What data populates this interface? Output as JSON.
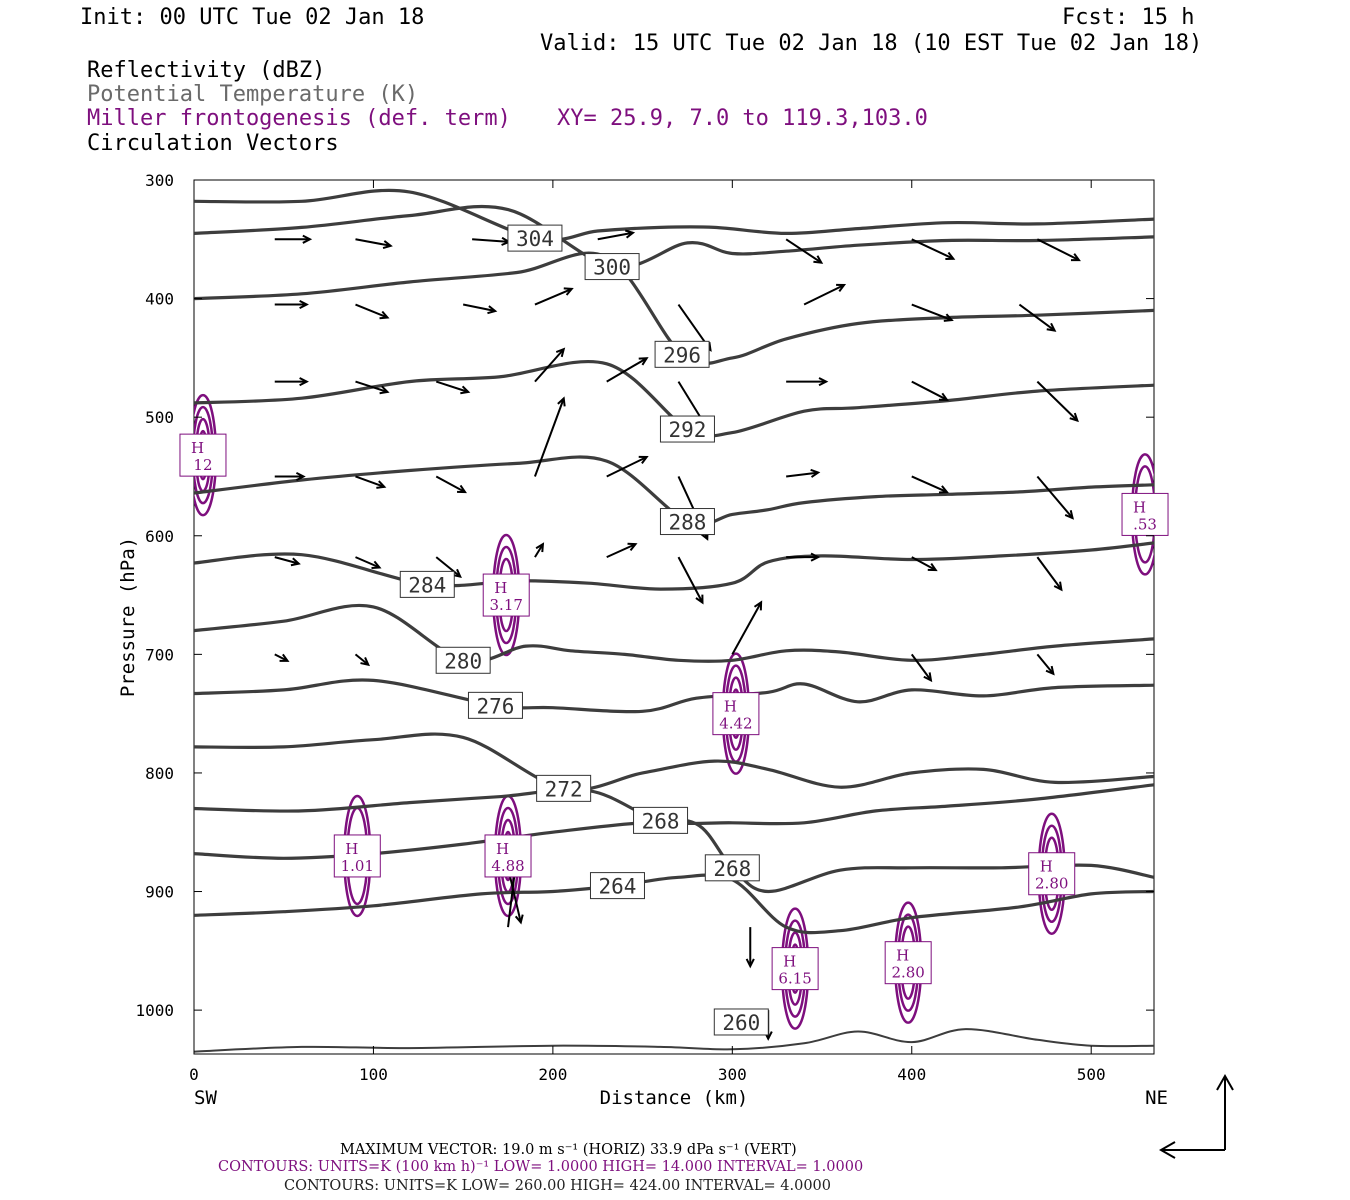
{
  "header": {
    "init": "Init: 00 UTC Tue 02 Jan 18",
    "fcst": "Fcst:   15 h",
    "valid": "Valid: 15 UTC Tue 02 Jan 18 (10 EST Tue 02 Jan 18)",
    "fields": {
      "reflectivity": "Reflectivity (dBZ)",
      "theta": "Potential Temperature (K)",
      "frontogenesis": "Miller frontogenesis (def. term)",
      "vectors": "Circulation Vectors"
    },
    "xy": "XY=  25.9,  7.0 to 119.3,103.0"
  },
  "colors": {
    "theta_contour": "#3d3d3d",
    "frontogenesis_contour": "#7e0f7e",
    "vector": "#000000",
    "text": "#000000"
  },
  "chart_data": {
    "type": "line",
    "title": "",
    "xlabel": "Distance (km)",
    "ylabel": "Pressure (hPa)",
    "xlim": [
      0,
      535
    ],
    "ylim": [
      1037,
      300
    ],
    "x_ticks": [
      "0",
      "100",
      "200",
      "300",
      "400",
      "500"
    ],
    "y_ticks": [
      "300",
      "400",
      "500",
      "600",
      "700",
      "800",
      "900",
      "1000"
    ],
    "endpoints": {
      "left": "SW",
      "right": "NE"
    },
    "theta_contours_K": [
      {
        "label": "260",
        "label_at": [
          305,
          1010
        ],
        "pts": [
          [
            0,
            1035
          ],
          [
            60,
            1031
          ],
          [
            120,
            1032
          ],
          [
            200,
            1030
          ],
          [
            260,
            1031
          ],
          [
            300,
            1033
          ],
          [
            340,
            1028
          ],
          [
            370,
            1018
          ],
          [
            400,
            1027
          ],
          [
            430,
            1016
          ],
          [
            470,
            1025
          ],
          [
            500,
            1030
          ],
          [
            535,
            1030
          ]
        ]
      },
      {
        "label": "264",
        "label_at": [
          236,
          895
        ],
        "pts": [
          [
            0,
            920
          ],
          [
            50,
            917
          ],
          [
            100,
            912
          ],
          [
            160,
            902
          ],
          [
            200,
            900
          ],
          [
            236,
            895
          ],
          [
            270,
            888
          ],
          [
            300,
            890
          ],
          [
            330,
            930
          ],
          [
            360,
            933
          ],
          [
            400,
            922
          ],
          [
            460,
            913
          ],
          [
            500,
            902
          ],
          [
            535,
            900
          ]
        ]
      },
      {
        "label": "268",
        "label_at": [
          300,
          880
        ],
        "pts": [
          [
            0,
            868
          ],
          [
            50,
            872
          ],
          [
            100,
            868
          ],
          [
            150,
            860
          ],
          [
            200,
            850
          ],
          [
            250,
            842
          ],
          [
            280,
            843
          ],
          [
            300,
            880
          ],
          [
            320,
            900
          ],
          [
            360,
            882
          ],
          [
            400,
            880
          ],
          [
            450,
            880
          ],
          [
            500,
            878
          ],
          [
            535,
            888
          ]
        ]
      },
      {
        "label": "268",
        "label_at": [
          260,
          840
        ],
        "pts": [
          [
            0,
            830
          ],
          [
            60,
            832
          ],
          [
            120,
            825
          ],
          [
            170,
            820
          ],
          [
            220,
            815
          ],
          [
            260,
            840
          ],
          [
            300,
            842
          ],
          [
            340,
            842
          ],
          [
            380,
            832
          ],
          [
            420,
            828
          ],
          [
            470,
            822
          ],
          [
            535,
            810
          ]
        ]
      },
      {
        "label": "272",
        "label_at": [
          206,
          813
        ],
        "pts": [
          [
            0,
            778
          ],
          [
            50,
            778
          ],
          [
            100,
            772
          ],
          [
            150,
            770
          ],
          [
            206,
            813
          ],
          [
            250,
            800
          ],
          [
            290,
            790
          ],
          [
            320,
            797
          ],
          [
            360,
            812
          ],
          [
            400,
            800
          ],
          [
            440,
            797
          ],
          [
            480,
            808
          ],
          [
            535,
            803
          ]
        ]
      },
      {
        "label": "276",
        "label_at": [
          168,
          743
        ],
        "pts": [
          [
            0,
            733
          ],
          [
            50,
            730
          ],
          [
            100,
            722
          ],
          [
            168,
            743
          ],
          [
            200,
            745
          ],
          [
            250,
            748
          ],
          [
            280,
            737
          ],
          [
            320,
            732
          ],
          [
            340,
            725
          ],
          [
            370,
            740
          ],
          [
            400,
            730
          ],
          [
            440,
            735
          ],
          [
            480,
            728
          ],
          [
            535,
            726
          ]
        ]
      },
      {
        "label": "280",
        "label_at": [
          150,
          705
        ],
        "pts": [
          [
            0,
            680
          ],
          [
            50,
            672
          ],
          [
            100,
            660
          ],
          [
            150,
            705
          ],
          [
            185,
            693
          ],
          [
            210,
            697
          ],
          [
            240,
            700
          ],
          [
            270,
            705
          ],
          [
            300,
            705
          ],
          [
            330,
            697
          ],
          [
            360,
            698
          ],
          [
            400,
            705
          ],
          [
            440,
            700
          ],
          [
            480,
            693
          ],
          [
            535,
            687
          ]
        ]
      },
      {
        "label": "284",
        "label_at": [
          130,
          641
        ],
        "pts": [
          [
            0,
            623
          ],
          [
            60,
            616
          ],
          [
            130,
            641
          ],
          [
            180,
            638
          ],
          [
            220,
            640
          ],
          [
            260,
            645
          ],
          [
            300,
            640
          ],
          [
            320,
            622
          ],
          [
            350,
            617
          ],
          [
            400,
            620
          ],
          [
            450,
            617
          ],
          [
            500,
            612
          ],
          [
            535,
            606
          ]
        ]
      },
      {
        "label": "288",
        "label_at": [
          275,
          588
        ],
        "pts": [
          [
            0,
            564
          ],
          [
            60,
            553
          ],
          [
            120,
            545
          ],
          [
            180,
            539
          ],
          [
            230,
            537
          ],
          [
            275,
            588
          ],
          [
            300,
            582
          ],
          [
            320,
            578
          ],
          [
            340,
            572
          ],
          [
            380,
            567
          ],
          [
            420,
            565
          ],
          [
            460,
            563
          ],
          [
            500,
            559
          ],
          [
            535,
            557
          ]
        ]
      },
      {
        "label": "292",
        "label_at": [
          275,
          510
        ],
        "pts": [
          [
            0,
            488
          ],
          [
            60,
            484
          ],
          [
            120,
            470
          ],
          [
            170,
            466
          ],
          [
            230,
            455
          ],
          [
            275,
            510
          ],
          [
            300,
            513
          ],
          [
            340,
            495
          ],
          [
            370,
            492
          ],
          [
            420,
            486
          ],
          [
            470,
            478
          ],
          [
            535,
            473
          ]
        ]
      },
      {
        "label": "296",
        "label_at": [
          272,
          447
        ],
        "pts": [
          [
            0,
            400
          ],
          [
            60,
            396
          ],
          [
            120,
            386
          ],
          [
            180,
            378
          ],
          [
            230,
            365
          ],
          [
            272,
            447
          ],
          [
            300,
            450
          ],
          [
            330,
            434
          ],
          [
            370,
            421
          ],
          [
            420,
            416
          ],
          [
            470,
            414
          ],
          [
            535,
            410
          ]
        ]
      },
      {
        "label": "300",
        "label_at": [
          233,
          373
        ],
        "pts": [
          [
            0,
            345
          ],
          [
            60,
            340
          ],
          [
            120,
            330
          ],
          [
            175,
            325
          ],
          [
            233,
            373
          ],
          [
            275,
            353
          ],
          [
            300,
            362
          ],
          [
            330,
            360
          ],
          [
            370,
            355
          ],
          [
            420,
            351
          ],
          [
            470,
            351
          ],
          [
            535,
            348
          ]
        ]
      },
      {
        "label": "304",
        "label_at": [
          190,
          349
        ],
        "pts": [
          [
            0,
            318
          ],
          [
            60,
            318
          ],
          [
            120,
            310
          ],
          [
            190,
            349
          ],
          [
            225,
            343
          ],
          [
            260,
            340
          ],
          [
            290,
            340
          ],
          [
            330,
            345
          ],
          [
            370,
            341
          ],
          [
            420,
            336
          ],
          [
            470,
            337
          ],
          [
            535,
            333
          ]
        ]
      }
    ],
    "frontogenesis_maxima": [
      {
        "label": "H",
        "value": "1.01",
        "x": 91,
        "p": 870
      },
      {
        "label": "H",
        "value": "4.88",
        "x": 175,
        "p": 870
      },
      {
        "label": "H",
        "value": "3.17",
        "x": 174,
        "p": 650
      },
      {
        "label": "H",
        "value": "4.42",
        "x": 302,
        "p": 750
      },
      {
        "label": "H",
        "value": "6.15",
        "x": 335,
        "p": 965
      },
      {
        "label": "H",
        "value": "2.80",
        "x": 398,
        "p": 960
      },
      {
        "label": "H",
        "value": "2.80",
        "x": 478,
        "p": 885
      },
      {
        "label": "H",
        "value": "12",
        "x": 5,
        "p": 532
      },
      {
        "label": "H",
        "value": ".53",
        "x": 530,
        "p": 582
      }
    ],
    "circulation_vectors": [
      {
        "x": 45,
        "p": 350,
        "u": 22,
        "w": 0
      },
      {
        "x": 90,
        "p": 350,
        "u": 22,
        "w": -5
      },
      {
        "x": 155,
        "p": 350,
        "u": 23,
        "w": -2
      },
      {
        "x": 225,
        "p": 350,
        "u": 22,
        "w": 5
      },
      {
        "x": 330,
        "p": 350,
        "u": 22,
        "w": -18
      },
      {
        "x": 400,
        "p": 350,
        "u": 26,
        "w": -15
      },
      {
        "x": 470,
        "p": 350,
        "u": 26,
        "w": -16
      },
      {
        "x": 45,
        "p": 405,
        "u": 20,
        "w": 0
      },
      {
        "x": 90,
        "p": 405,
        "u": 20,
        "w": -10
      },
      {
        "x": 150,
        "p": 405,
        "u": 20,
        "w": -5
      },
      {
        "x": 190,
        "p": 405,
        "u": 23,
        "w": 12
      },
      {
        "x": 270,
        "p": 405,
        "u": 20,
        "w": -35
      },
      {
        "x": 340,
        "p": 405,
        "u": 25,
        "w": 15
      },
      {
        "x": 400,
        "p": 405,
        "u": 25,
        "w": -12
      },
      {
        "x": 460,
        "p": 405,
        "u": 22,
        "w": -20
      },
      {
        "x": 45,
        "p": 470,
        "u": 20,
        "w": 0
      },
      {
        "x": 90,
        "p": 470,
        "u": 20,
        "w": -8
      },
      {
        "x": 135,
        "p": 470,
        "u": 20,
        "w": -8
      },
      {
        "x": 190,
        "p": 470,
        "u": 18,
        "w": 25
      },
      {
        "x": 230,
        "p": 470,
        "u": 25,
        "w": 18
      },
      {
        "x": 270,
        "p": 470,
        "u": 20,
        "w": -40
      },
      {
        "x": 330,
        "p": 470,
        "u": 25,
        "w": 0
      },
      {
        "x": 400,
        "p": 470,
        "u": 22,
        "w": -14
      },
      {
        "x": 470,
        "p": 470,
        "u": 25,
        "w": -30
      },
      {
        "x": 45,
        "p": 550,
        "u": 18,
        "w": 0
      },
      {
        "x": 90,
        "p": 550,
        "u": 18,
        "w": -8
      },
      {
        "x": 135,
        "p": 550,
        "u": 18,
        "w": -12
      },
      {
        "x": 190,
        "p": 550,
        "u": 18,
        "w": 60
      },
      {
        "x": 230,
        "p": 550,
        "u": 25,
        "w": 15
      },
      {
        "x": 270,
        "p": 550,
        "u": 18,
        "w": -48
      },
      {
        "x": 330,
        "p": 550,
        "u": 20,
        "w": 3
      },
      {
        "x": 400,
        "p": 550,
        "u": 22,
        "w": -12
      },
      {
        "x": 470,
        "p": 550,
        "u": 22,
        "w": -32
      },
      {
        "x": 45,
        "p": 618,
        "u": 15,
        "w": -5
      },
      {
        "x": 90,
        "p": 618,
        "u": 15,
        "w": -8
      },
      {
        "x": 135,
        "p": 618,
        "u": 15,
        "w": -15
      },
      {
        "x": 190,
        "p": 618,
        "u": 5,
        "w": 10
      },
      {
        "x": 230,
        "p": 618,
        "u": 18,
        "w": 10
      },
      {
        "x": 270,
        "p": 618,
        "u": 15,
        "w": -35
      },
      {
        "x": 330,
        "p": 618,
        "u": 20,
        "w": 0
      },
      {
        "x": 400,
        "p": 618,
        "u": 15,
        "w": -10
      },
      {
        "x": 470,
        "p": 618,
        "u": 15,
        "w": -25
      },
      {
        "x": 45,
        "p": 700,
        "u": 8,
        "w": -5
      },
      {
        "x": 90,
        "p": 700,
        "u": 8,
        "w": -8
      },
      {
        "x": 300,
        "p": 700,
        "u": 18,
        "w": 40
      },
      {
        "x": 400,
        "p": 700,
        "u": 12,
        "w": -20
      },
      {
        "x": 470,
        "p": 700,
        "u": 10,
        "w": -15
      },
      {
        "x": 175,
        "p": 880,
        "u": 8,
        "w": -42
      },
      {
        "x": 175,
        "p": 930,
        "u": 5,
        "w": 50
      },
      {
        "x": 310,
        "p": 930,
        "u": 0,
        "w": -30
      },
      {
        "x": 320,
        "p": 1000,
        "u": 0,
        "w": -22
      }
    ]
  },
  "footer": {
    "max_vector": "MAXIMUM VECTOR:  19.0 m s⁻¹ (HORIZ)          33.9 dPa s⁻¹ (VERT)",
    "contours_frontogenesis": "CONTOURS:  UNITS=K (100 km h)⁻¹  LOW=   1.0000        HIGH=   14.000       INTERVAL=    1.0000",
    "contours_theta": "CONTOURS:  UNITS=K   LOW=   260.00        HIGH=   424.00         INTERVAL=    4.0000"
  }
}
